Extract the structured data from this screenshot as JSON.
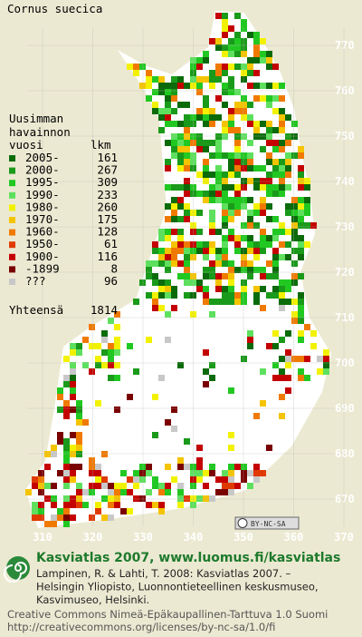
{
  "title": "Cornus suecica",
  "legend": {
    "heading": [
      "Uusimman",
      "havainnon"
    ],
    "col_year": "vuosi",
    "col_count": "lkm",
    "rows": [
      {
        "label": "2005-",
        "count": 161,
        "color": "#0b6b0b"
      },
      {
        "label": "2000-",
        "count": 267,
        "color": "#1a9a1a"
      },
      {
        "label": "1995-",
        "count": 309,
        "color": "#22c822"
      },
      {
        "label": "1990-",
        "count": 233,
        "color": "#5ee05e"
      },
      {
        "label": "1980-",
        "count": 260,
        "color": "#f2f200"
      },
      {
        "label": "1970-",
        "count": 175,
        "color": "#f5c400"
      },
      {
        "label": "1960-",
        "count": 128,
        "color": "#f07a00"
      },
      {
        "label": "1950-",
        "count": 61,
        "color": "#e03a00"
      },
      {
        "label": "1900-",
        "count": 116,
        "color": "#c40000"
      },
      {
        "label": "-1899",
        "count": 8,
        "color": "#7a0000"
      },
      {
        "label": "???",
        "count": 96,
        "color": "#c8c8c8"
      }
    ],
    "total_label": "Yhteensä",
    "total": 1814
  },
  "grid": {
    "y_labels": [
      770,
      760,
      750,
      740,
      730,
      720,
      710,
      700,
      690,
      680,
      670
    ],
    "x_labels": [
      310,
      320,
      330,
      340,
      350,
      360,
      370
    ]
  },
  "badge": "BY-NC-SA",
  "footer": {
    "title": "Kasviatlas 2007, www.luomus.fi/kasviatlas",
    "citation": [
      "Lampinen, R. & Lahti, T. 2008: Kasviatlas 2007. –",
      "Helsingin Yliopisto, Luonnontieteellinen keskusmuseo,",
      "Kasvimuseo, Helsinki."
    ],
    "license": [
      "Creative Commons Nimeä-Epäkaupallinen-Tarttuva 1.0 Suomi",
      "http://creativecommons.org/licenses/by-nc-sa/1.0/fi"
    ]
  }
}
